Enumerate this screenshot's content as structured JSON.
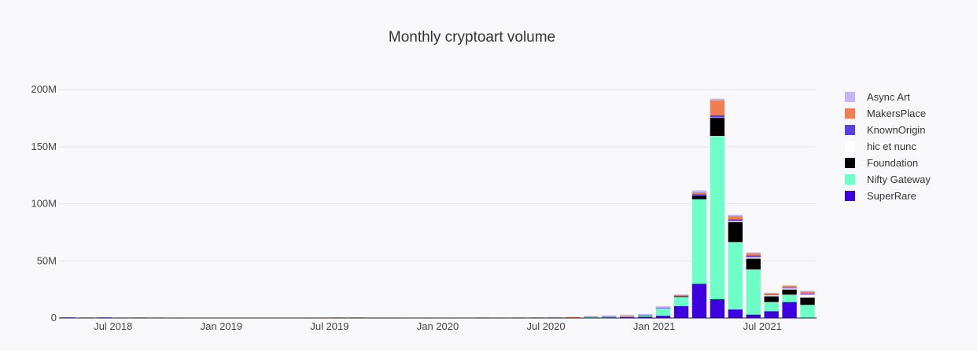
{
  "chart_data": {
    "type": "bar",
    "stacked": true,
    "title": "Monthly cryptoart volume",
    "xlabel": "",
    "ylabel": "",
    "ylim": [
      0,
      220000000
    ],
    "y_ticks": [
      {
        "value": 0,
        "label": "0"
      },
      {
        "value": 50000000,
        "label": "50M"
      },
      {
        "value": 100000000,
        "label": "100M"
      },
      {
        "value": 150000000,
        "label": "150M"
      },
      {
        "value": 200000000,
        "label": "200M"
      }
    ],
    "x_ticks": [
      {
        "category": "2018-07",
        "label": "Jul 2018"
      },
      {
        "category": "2019-01",
        "label": "Jan 2019"
      },
      {
        "category": "2019-07",
        "label": "Jul 2019"
      },
      {
        "category": "2020-01",
        "label": "Jan 2020"
      },
      {
        "category": "2020-07",
        "label": "Jul 2020"
      },
      {
        "category": "2021-01",
        "label": "Jan 2021"
      },
      {
        "category": "2021-07",
        "label": "Jul 2021"
      }
    ],
    "grid": true,
    "legend_position": "right",
    "categories": [
      "2018-04",
      "2018-05",
      "2018-06",
      "2018-07",
      "2018-08",
      "2018-09",
      "2018-10",
      "2018-11",
      "2018-12",
      "2019-01",
      "2019-02",
      "2019-03",
      "2019-04",
      "2019-05",
      "2019-06",
      "2019-07",
      "2019-08",
      "2019-09",
      "2019-10",
      "2019-11",
      "2019-12",
      "2020-01",
      "2020-02",
      "2020-03",
      "2020-04",
      "2020-05",
      "2020-06",
      "2020-07",
      "2020-08",
      "2020-09",
      "2020-10",
      "2020-11",
      "2020-12",
      "2021-01",
      "2021-02",
      "2021-03",
      "2021-04",
      "2021-05",
      "2021-06",
      "2021-07",
      "2021-08",
      "2021-09"
    ],
    "series": [
      {
        "name": "SuperRare",
        "color": "#3d00e0",
        "values": [
          400000,
          300000,
          400000,
          300000,
          350000,
          300000,
          250000,
          200000,
          150000,
          150000,
          150000,
          200000,
          200000,
          150000,
          200000,
          200000,
          150000,
          150000,
          150000,
          100000,
          150000,
          100000,
          100000,
          100000,
          150000,
          200000,
          200000,
          300000,
          400000,
          500000,
          600000,
          700000,
          1200000,
          2000000,
          10500000,
          30000000,
          16500000,
          7500000,
          3000000,
          6000000,
          14000000,
          0
        ]
      },
      {
        "name": "Nifty Gateway",
        "color": "#6effc8",
        "values": [
          0,
          0,
          0,
          0,
          0,
          0,
          0,
          0,
          0,
          0,
          0,
          0,
          0,
          0,
          0,
          0,
          0,
          0,
          0,
          0,
          0,
          0,
          0,
          0,
          0,
          0,
          0,
          0,
          0,
          500000,
          400000,
          600000,
          900000,
          6500000,
          8000000,
          74000000,
          143000000,
          59000000,
          39500000,
          8000000,
          6500000,
          11500000
        ]
      },
      {
        "name": "Foundation",
        "color": "#000000",
        "values": [
          0,
          0,
          0,
          0,
          0,
          0,
          0,
          0,
          0,
          0,
          0,
          0,
          0,
          0,
          0,
          0,
          0,
          0,
          0,
          0,
          0,
          0,
          0,
          0,
          0,
          0,
          0,
          0,
          0,
          0,
          0,
          0,
          0,
          0,
          300000,
          3000000,
          16000000,
          17500000,
          9500000,
          5000000,
          4500000,
          6500000
        ]
      },
      {
        "name": "hic et nunc",
        "color": "#ffffff",
        "values": [
          0,
          0,
          0,
          0,
          0,
          0,
          0,
          0,
          0,
          0,
          0,
          0,
          0,
          0,
          0,
          0,
          0,
          0,
          0,
          0,
          0,
          0,
          0,
          0,
          0,
          0,
          0,
          0,
          0,
          0,
          0,
          0,
          0,
          0,
          0,
          0,
          100000,
          800000,
          1200000,
          800000,
          900000,
          2500000
        ]
      },
      {
        "name": "KnownOrigin",
        "color": "#5a3ee6",
        "values": [
          150000,
          150000,
          150000,
          100000,
          100000,
          100000,
          100000,
          100000,
          100000,
          100000,
          100000,
          100000,
          100000,
          100000,
          100000,
          100000,
          100000,
          100000,
          100000,
          100000,
          100000,
          100000,
          100000,
          100000,
          100000,
          100000,
          150000,
          200000,
          200000,
          200000,
          200000,
          200000,
          300000,
          500000,
          700000,
          1500000,
          2000000,
          1500000,
          1500000,
          600000,
          700000,
          800000
        ]
      },
      {
        "name": "MakersPlace",
        "color": "#ef7e50",
        "values": [
          0,
          0,
          0,
          0,
          0,
          0,
          0,
          0,
          0,
          0,
          0,
          0,
          0,
          50000,
          100000,
          200000,
          300000,
          100000,
          100000,
          50000,
          100000,
          100000,
          150000,
          200000,
          100000,
          100000,
          100000,
          100000,
          100000,
          100000,
          300000,
          200000,
          300000,
          400000,
          600000,
          1500000,
          13000000,
          3000000,
          2000000,
          1200000,
          1500000,
          1800000
        ]
      },
      {
        "name": "Async Art",
        "color": "#c5b7f5",
        "values": [
          0,
          0,
          0,
          0,
          0,
          0,
          0,
          0,
          0,
          0,
          0,
          0,
          0,
          0,
          0,
          0,
          0,
          0,
          0,
          0,
          0,
          0,
          50000,
          100000,
          100000,
          150000,
          200000,
          300000,
          400000,
          300000,
          800000,
          1200000,
          800000,
          900000,
          700000,
          1800000,
          1500000,
          1000000,
          700000,
          500000,
          600000,
          700000
        ]
      }
    ]
  },
  "legend_order": [
    "Async Art",
    "MakersPlace",
    "KnownOrigin",
    "hic et nunc",
    "Foundation",
    "Nifty Gateway",
    "SuperRare"
  ]
}
